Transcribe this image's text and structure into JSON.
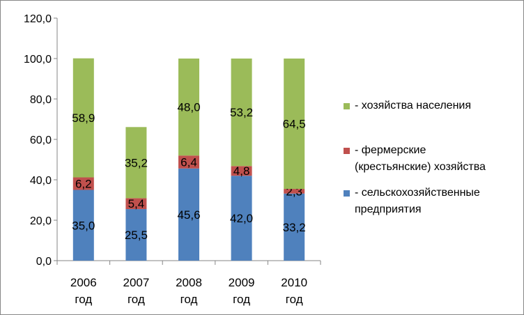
{
  "chart_data": {
    "type": "bar",
    "stacked": true,
    "categories": [
      "2006\nгод",
      "2007\nгод",
      "2008\nгод",
      "2009\nгод",
      "2010\nгод"
    ],
    "series": [
      {
        "name": " - сельскохозяйственные\nпредприятия",
        "color": "#4F81BD",
        "values": [
          35.0,
          25.5,
          45.6,
          42.0,
          33.2
        ],
        "labels": [
          "35,0",
          "25,5",
          "45,6",
          "42,0",
          "33,2"
        ]
      },
      {
        "name": " - фермерские\n(крестьянские) хозяйства",
        "color": "#C0504D",
        "values": [
          6.2,
          5.4,
          6.4,
          4.8,
          2.3
        ],
        "labels": [
          "6,2",
          "5,4",
          "6,4",
          "4,8",
          "2,3"
        ]
      },
      {
        "name": " - хозяйства населения",
        "color": "#9BBB59",
        "values": [
          58.9,
          35.2,
          48.0,
          53.2,
          64.5
        ],
        "labels": [
          "58,9",
          "35,2",
          "48,0",
          "53,2",
          "64,5"
        ]
      }
    ],
    "yticks": [
      "0,0",
      "20,0",
      "40,0",
      "60,0",
      "80,0",
      "100,0",
      "120,0"
    ],
    "ylim": [
      0,
      120
    ],
    "grid": false,
    "legend": "right",
    "title": "",
    "xlabel": "",
    "ylabel": ""
  }
}
